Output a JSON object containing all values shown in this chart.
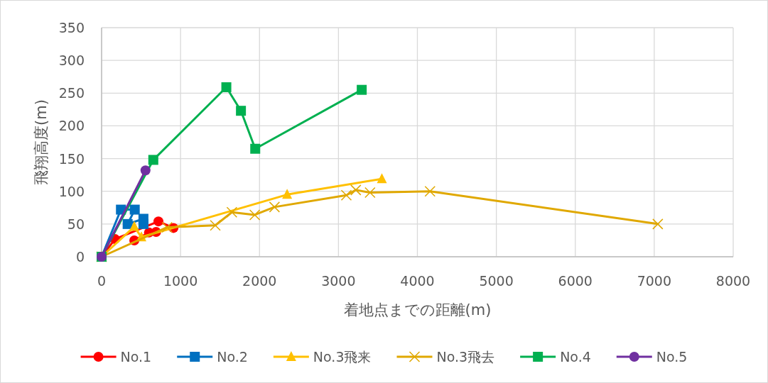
{
  "chart_data": {
    "type": "line",
    "xlabel": "着地点までの距離(m)",
    "ylabel": "飛翔高度(m)",
    "xlim": [
      0,
      8000
    ],
    "xticks": [
      0,
      1000,
      2000,
      3000,
      4000,
      5000,
      6000,
      7000,
      8000
    ],
    "ylim": [
      0,
      350
    ],
    "yticks": [
      0,
      50,
      100,
      150,
      200,
      250,
      300,
      350
    ],
    "grid": true,
    "legend": "bottom",
    "line_style": "solid",
    "series": [
      {
        "name": "No.1",
        "color": "#ff0000",
        "marker": "circle",
        "x": [
          0,
          170,
          720,
          910,
          690,
          600,
          414
        ],
        "values": [
          0,
          27,
          54,
          44,
          38,
          37,
          25
        ]
      },
      {
        "name": "No.2",
        "color": "#0070c0",
        "marker": "square",
        "x": [
          0,
          245,
          420,
          330,
          530,
          530
        ],
        "values": [
          0,
          72,
          72,
          50,
          58,
          50
        ]
      },
      {
        "name": "No.3飛来",
        "color": "#ffc000",
        "marker": "triangle",
        "x": [
          0,
          414,
          504,
          2350,
          3550
        ],
        "values": [
          0,
          46,
          30,
          95,
          119
        ]
      },
      {
        "name": "No.3飛去",
        "color": "#e0a800",
        "marker": "cross",
        "x": [
          0,
          830,
          1440,
          1650,
          1940,
          2190,
          3100,
          3220,
          3400,
          4160,
          7045
        ],
        "values": [
          0,
          45,
          48,
          68,
          64,
          76,
          94,
          102,
          98,
          100,
          50
        ]
      },
      {
        "name": "No.4",
        "color": "#00b050",
        "marker": "square",
        "x": [
          0,
          655,
          1580,
          1765,
          1946,
          3295
        ],
        "values": [
          0,
          148,
          259,
          223,
          165,
          255
        ]
      },
      {
        "name": "No.5",
        "color": "#7030a0",
        "marker": "circle",
        "x": [
          0,
          556
        ],
        "values": [
          0,
          132
        ]
      }
    ]
  }
}
